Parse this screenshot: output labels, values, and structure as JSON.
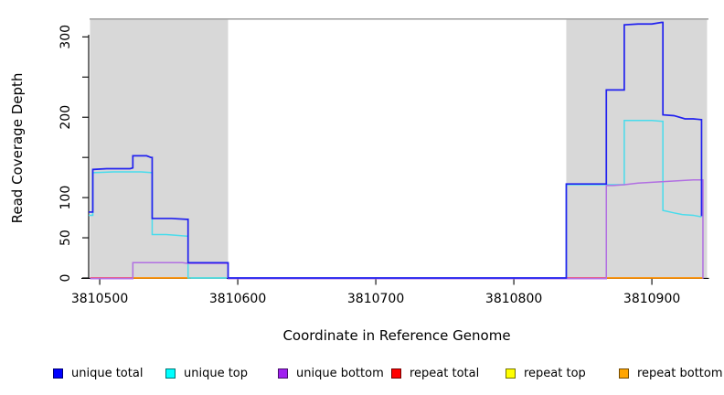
{
  "chart_data": {
    "type": "line",
    "subtype": "step-coverage-plot",
    "title": "",
    "xlabel": "Coordinate in Reference Genome",
    "ylabel": "Read Coverage Depth",
    "xlim": [
      3810492,
      3810941
    ],
    "ylim": [
      0,
      322
    ],
    "grid": false,
    "xticks": [
      {
        "value": 3810500,
        "label": "3810500"
      },
      {
        "value": 3810600,
        "label": "3810600"
      },
      {
        "value": 3810700,
        "label": "3810700"
      },
      {
        "value": 3810800,
        "label": "3810800"
      },
      {
        "value": 3810900,
        "label": "3810900"
      }
    ],
    "yticks_labeled": [
      {
        "value": 0,
        "label": "0"
      },
      {
        "value": 50,
        "label": "50"
      },
      {
        "value": 100,
        "label": "100"
      },
      {
        "value": 200,
        "label": "200"
      },
      {
        "value": 300,
        "label": "300"
      }
    ],
    "yticks_unlabeled": [
      150,
      250
    ],
    "shaded_regions": [
      {
        "x0": 3810493,
        "x1": 3810593,
        "color": "#d8d8d8"
      },
      {
        "x0": 3810838,
        "x1": 3810940,
        "color": "#d8d8d8"
      }
    ],
    "top_strip_color": "#a3a3a3",
    "legend_position": "bottom",
    "legend": [
      {
        "label": "unique total",
        "color": "#0000ff"
      },
      {
        "label": "unique top",
        "color": "#00ffff"
      },
      {
        "label": "unique bottom",
        "color": "#a020f0"
      },
      {
        "label": "repeat total",
        "color": "#ff0000"
      },
      {
        "label": "repeat top",
        "color": "#ffff00"
      },
      {
        "label": "repeat bottom",
        "color": "#ffa500"
      }
    ],
    "series": [
      {
        "name": "repeat total",
        "legend_color": "#ff0000",
        "line_color": "#e8538a",
        "width": 1.8,
        "dy": 0,
        "note": "flat at 0; appears pink where overdrawn with unique bottom",
        "segments": [
          [
            [
              3810493,
              0
            ],
            [
              3810524,
              0
            ]
          ],
          [
            [
              3810838,
              0
            ],
            [
              3810867,
              0
            ]
          ]
        ]
      },
      {
        "name": "repeat bottom",
        "legend_color": "#ffa500",
        "line_color": "#ff9000",
        "width": 1.8,
        "dy": 0,
        "note": "flat at 0",
        "segments": [
          [
            [
              3810524,
              0
            ],
            [
              3810566,
              0
            ]
          ],
          [
            [
              3810867,
              0
            ],
            [
              3810937,
              0
            ]
          ]
        ]
      },
      {
        "name": "repeat top",
        "legend_color": "#ffff00",
        "line_color": "#8fd8a5",
        "width": 1.8,
        "dy": 0,
        "note": "flat at 0; appears pale green where overdrawn with unique top",
        "segments": [
          [
            [
              3810566,
              0
            ],
            [
              3810592,
              0
            ]
          ]
        ]
      },
      {
        "name": "unique top",
        "legend_color": "#00ffff",
        "line_color": "#49dcec",
        "width": 1.5,
        "dy": 0,
        "segments": [
          [
            [
              3810492,
              78
            ],
            [
              3810495,
              78
            ],
            [
              3810495,
              131
            ],
            [
              3810510,
              132
            ],
            [
              3810530,
              132
            ],
            [
              3810538,
              131
            ],
            [
              3810538,
              54
            ],
            [
              3810548,
              54
            ],
            [
              3810556,
              53
            ],
            [
              3810563,
              52
            ],
            [
              3810564,
              52
            ],
            [
              3810564,
              0
            ],
            [
              3810592,
              0
            ]
          ],
          [
            [
              3810838,
              0
            ],
            [
              3810838,
              116
            ],
            [
              3810866,
              116
            ],
            [
              3810880,
              116
            ],
            [
              3810880,
              196
            ],
            [
              3810900,
              196
            ],
            [
              3810907,
              195
            ],
            [
              3810908,
              195
            ],
            [
              3810908,
              84
            ],
            [
              3810916,
              81
            ],
            [
              3810922,
              79
            ],
            [
              3810930,
              78
            ],
            [
              3810936,
              76
            ]
          ]
        ]
      },
      {
        "name": "unique bottom",
        "legend_color": "#a020f0",
        "line_color": "#b16fe2",
        "width": 1.5,
        "dy": 0.8,
        "segments": [
          [
            [
              3810493,
              0
            ],
            [
              3810524,
              0
            ],
            [
              3810524,
              20
            ],
            [
              3810560,
              20
            ],
            [
              3810564,
              19
            ],
            [
              3810592,
              19
            ],
            [
              3810593,
              19
            ],
            [
              3810593,
              0
            ],
            [
              3810867,
              0
            ],
            [
              3810867,
              116
            ],
            [
              3810872,
              116
            ],
            [
              3810880,
              117
            ],
            [
              3810890,
              119
            ],
            [
              3810900,
              120
            ],
            [
              3810910,
              121
            ],
            [
              3810920,
              122
            ],
            [
              3810930,
              123
            ],
            [
              3810937,
              123
            ],
            [
              3810937,
              0
            ]
          ]
        ]
      },
      {
        "name": "unique total",
        "legend_color": "#0000ff",
        "line_color": "#2121ef",
        "width": 1.7,
        "dy": 0,
        "segments": [
          [
            [
              3810492,
              82
            ],
            [
              3810495,
              82
            ],
            [
              3810495,
              135
            ],
            [
              3810505,
              136
            ],
            [
              3810522,
              136
            ],
            [
              3810524,
              137
            ],
            [
              3810524,
              152
            ],
            [
              3810534,
              152
            ],
            [
              3810537,
              150
            ],
            [
              3810538,
              150
            ],
            [
              3810538,
              74
            ],
            [
              3810552,
              74
            ],
            [
              3810563,
              73
            ],
            [
              3810564,
              73
            ],
            [
              3810564,
              19
            ],
            [
              3810592,
              19
            ],
            [
              3810593,
              19
            ],
            [
              3810593,
              0
            ],
            [
              3810838,
              0
            ],
            [
              3810838,
              117
            ],
            [
              3810866,
              117
            ],
            [
              3810867,
              117
            ],
            [
              3810867,
              234
            ],
            [
              3810879,
              234
            ],
            [
              3810880,
              234
            ],
            [
              3810880,
              315
            ],
            [
              3810890,
              316
            ],
            [
              3810900,
              316
            ],
            [
              3810907,
              318
            ],
            [
              3810908,
              318
            ],
            [
              3810908,
              203
            ],
            [
              3810916,
              202
            ],
            [
              3810920,
              200
            ],
            [
              3810924,
              198
            ],
            [
              3810930,
              198
            ],
            [
              3810936,
              197
            ],
            [
              3810936,
              77
            ]
          ]
        ]
      }
    ]
  }
}
